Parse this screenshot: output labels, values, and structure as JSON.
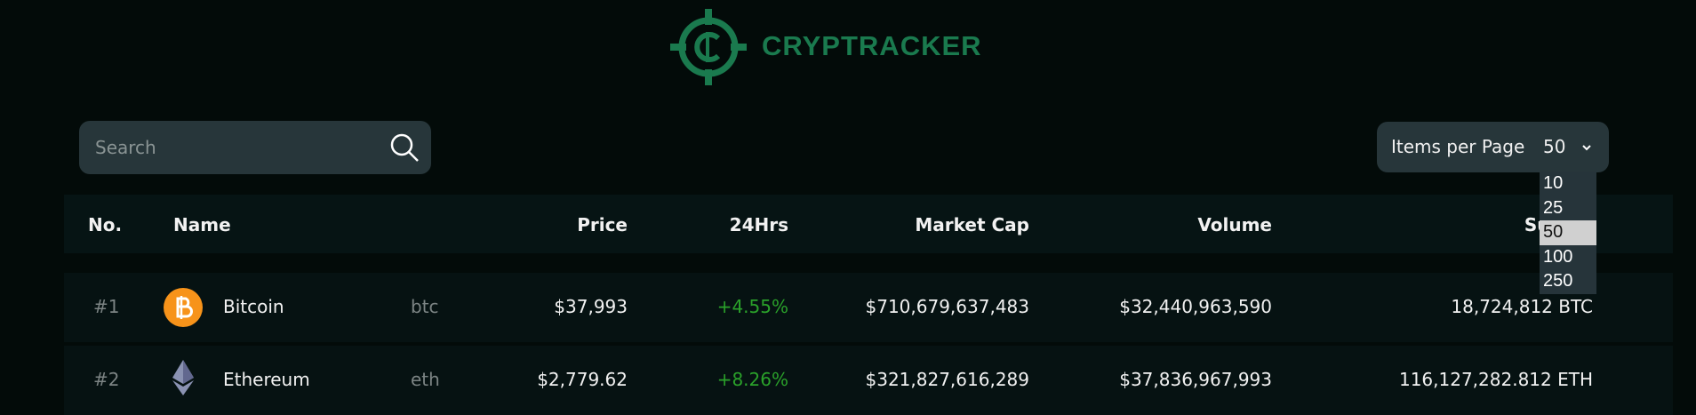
{
  "header": {
    "logo": "CRYPTRACKER"
  },
  "controls": {
    "search_placeholder": "Search",
    "items_label": "Items per Page",
    "items_value": "50",
    "options": [
      "10",
      "25",
      "50",
      "100",
      "250"
    ]
  },
  "table": {
    "columns": [
      "No.",
      "Name",
      "Price",
      "24Hrs",
      "Market Cap",
      "Volume",
      "Supply"
    ],
    "rows": [
      [
        "#1",
        "Bitcoin",
        "btc",
        "$37,993",
        "+4.55%",
        "$710,679,637,483",
        "$32,440,963,590",
        "18,724,812 BTC"
      ],
      [
        "#2",
        "Ethereum",
        "eth",
        "$2,779.62",
        "+8.26%",
        "$321,827,616,289",
        "$37,836,967,993",
        "116,127,282.812 ETH"
      ]
    ]
  }
}
